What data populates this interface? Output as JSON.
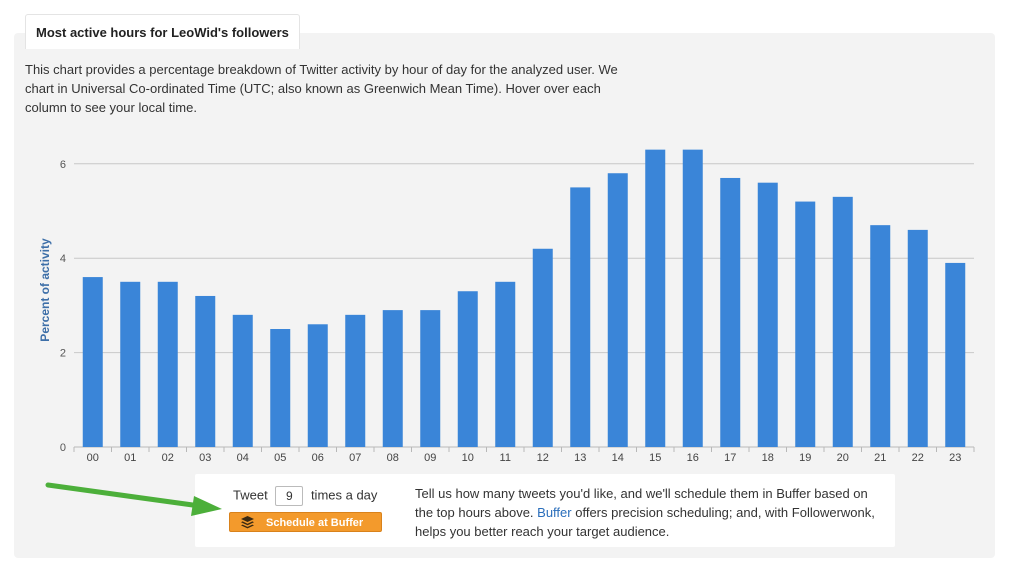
{
  "header": {
    "title": "Most active hours for LeoWid's followers"
  },
  "description": "This chart provides a percentage breakdown of Twitter activity by hour of day for the analyzed user. We chart in Universal Co-ordinated Time (UTC; also known as Greenwich Mean Time). Hover over each column to see your local time.",
  "chart_data": {
    "type": "bar",
    "title": "",
    "xlabel": "",
    "ylabel": "Percent of activity",
    "categories": [
      "00",
      "01",
      "02",
      "03",
      "04",
      "05",
      "06",
      "07",
      "08",
      "09",
      "10",
      "11",
      "12",
      "13",
      "14",
      "15",
      "16",
      "17",
      "18",
      "19",
      "20",
      "21",
      "22",
      "23"
    ],
    "values": [
      3.6,
      3.5,
      3.5,
      3.2,
      2.8,
      2.5,
      2.6,
      2.8,
      2.9,
      2.9,
      3.3,
      3.5,
      4.2,
      5.5,
      5.8,
      6.3,
      6.3,
      5.7,
      5.6,
      5.2,
      5.3,
      4.7,
      4.6,
      3.9
    ],
    "ylim": [
      0,
      6.6
    ],
    "yticks": [
      "0",
      "2",
      "4",
      "6"
    ],
    "grid": true,
    "bar_color": "#3a85d8",
    "ylabel_color": "#3d6fa8"
  },
  "buffer": {
    "tweet_label": "Tweet",
    "tweet_count": "9",
    "times_label": "times a day",
    "button_label": "Schedule at Buffer",
    "button_icon": "layers-icon",
    "text_before": "Tell us how many tweets you'd like, and we'll schedule them in Buffer based on the top hours above. ",
    "link_text": "Buffer",
    "text_after": " offers precision scheduling; and, with Followerwonk, helps you better reach your target audience.",
    "button_color": "#f39a2c",
    "arrow_color": "#4caf3a"
  }
}
